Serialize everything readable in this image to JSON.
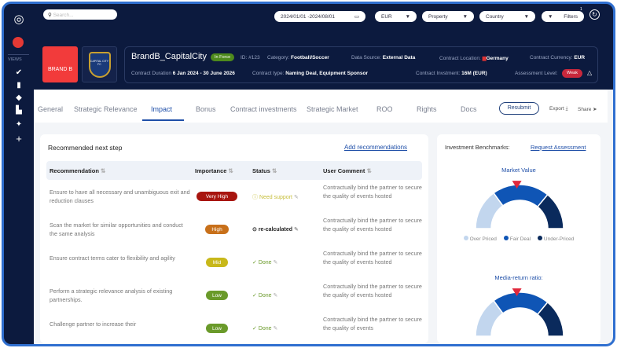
{
  "search": {
    "placeholder": "Search..."
  },
  "topbar": {
    "date_range": "2024/01/01 -2024/08/01",
    "currency": "EUR",
    "property": "Property",
    "country": "Country",
    "filters": "Filters",
    "filters_count": "1"
  },
  "sidebar": {
    "views_label": "VIEWS",
    "items": [
      "check-badge-icon",
      "bookmark-icon",
      "tag-icon",
      "chart-icon",
      "sparkle-icon",
      "plus-icon"
    ]
  },
  "brand": {
    "name": "BRAND B",
    "club": "CAPITAL CITY FC"
  },
  "contract": {
    "title": "BrandB_CapitalCity",
    "status": "In Force",
    "id": "ID: #123",
    "category_label": "Category:",
    "category": "Football/Soccer",
    "source_label": "Data Source:",
    "source": "External Data",
    "location_label": "Contract Location:",
    "location": "Germany",
    "currency_label": "Contract Currency:",
    "currency": "EUR",
    "duration_label": "Contract Duration",
    "duration": "6 Jan 2024 - 30 June 2026",
    "type_label": "Contract type:",
    "type": "Naming Deal, Equipment Sponsor",
    "investment_label": "Contract Invstment:",
    "investment": "16M (EUR)",
    "assessment_label": "Assessment Level:",
    "assessment": "Weak"
  },
  "tabs": [
    "General",
    "Strategic Relevance",
    "Impact",
    "Bonus",
    "Contract investments",
    "Strategic Market",
    "ROO",
    "Rights",
    "Docs"
  ],
  "active_tab": "Impact",
  "actions": {
    "resubmit": "Resubmit",
    "export": "Export",
    "share": "Share"
  },
  "recommendations": {
    "title": "Recommended next step",
    "add_link": "Add recommendations",
    "columns": [
      "Recommendation",
      "Importance",
      "Status",
      "User Comment"
    ],
    "rows": [
      {
        "text": "Ensure to have all necessary and unambiguous exit and reduction clauses",
        "importance": "Very High",
        "color": "#a8150f",
        "status": "Need support",
        "status_color": "#c8c040",
        "comment": "Contractually bind the partner to secure the quality of events hosted"
      },
      {
        "text": "Scan the market for similar opportunities and conduct the same analysis",
        "importance": "High",
        "color": "#c8701a",
        "status": "re-calculated",
        "status_color": "#222222",
        "comment": "Contractually bind the partner to secure the quality of events hosted"
      },
      {
        "text": "Ensure contract terms cater to flexibility and agility",
        "importance": "Mid",
        "color": "#c8b81a",
        "status": "Done",
        "status_color": "#6a9a2a",
        "comment": "Contractually bind the partner to secure the quality of events hosted"
      },
      {
        "text": "Perform a strategic relevance analysis of existing partnerships.",
        "importance": "Low",
        "color": "#6a9a2a",
        "status": "Done",
        "status_color": "#6a9a2a",
        "comment": "Contractually bind the partner to secure the quality of events hosted"
      },
      {
        "text": "Challenge partner to increase their",
        "importance": "Low",
        "color": "#6a9a2a",
        "status": "Done",
        "status_color": "#6a9a2a",
        "comment": "Contractually bind the partner to secure the quality of events"
      }
    ]
  },
  "benchmarks": {
    "title": "Investment Benchmarks:",
    "link": "Request Assessment",
    "legend": [
      {
        "label": "Over Priced",
        "color": "#c2d6ee"
      },
      {
        "label": "Fair Deal",
        "color": "#0f55b5"
      },
      {
        "label": "Under-Priced",
        "color": "#0a2a5c"
      }
    ],
    "gauges": [
      {
        "title": "Market Value",
        "segments": [
          0.3,
          0.42,
          0.28
        ],
        "pointer": 0.48
      },
      {
        "title": "Media-return ratio:",
        "segments": [
          0.3,
          0.42,
          0.28
        ],
        "pointer": 0.48
      }
    ]
  }
}
